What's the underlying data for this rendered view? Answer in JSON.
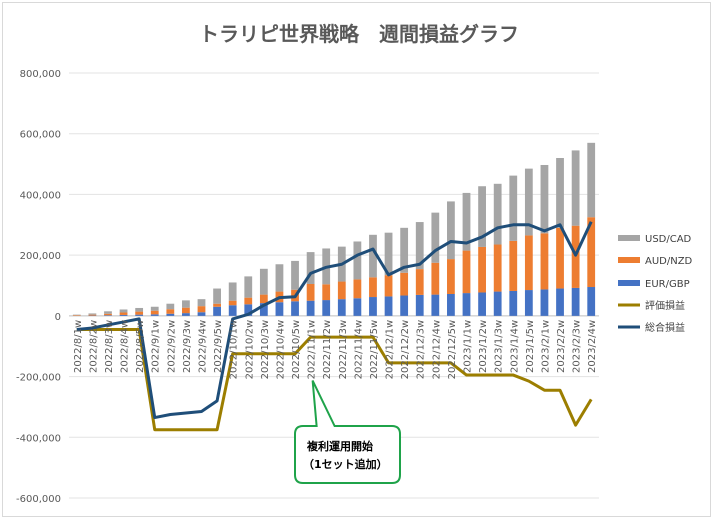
{
  "chart_data": {
    "type": "bar",
    "title": "トラリピ世界戦略　週間損益グラフ",
    "ylim": [
      -600000,
      800000
    ],
    "y_ticks": [
      800000,
      600000,
      400000,
      200000,
      0,
      -200000,
      -400000,
      -600000
    ],
    "y_tick_labels": [
      "800,000",
      "600,000",
      "400,000",
      "200,000",
      "0",
      "-200,000",
      "-400,000",
      "-600,000"
    ],
    "grid": true,
    "legend_position": "right",
    "categories": [
      "2022/8/1w",
      "2022/8/2w",
      "2022/8/3w",
      "2022/8/4w",
      "2022/8/5w",
      "2022/9/1w",
      "2022/9/2w",
      "2022/9/3w",
      "2022/9/4w",
      "2022/9/5w",
      "2022/10/1w",
      "2022/10/2w",
      "2022/10/3w",
      "2022/10/4w",
      "2022/10/5w",
      "2022/11/1w",
      "2022/11/2w",
      "2022/11/3w",
      "2022/11/4w",
      "2022/11/5w",
      "2022/12/1w",
      "2022/12/2w",
      "2022/12/3w",
      "2022/12/4w",
      "2022/12/5w",
      "2023/1/1w",
      "2023/1/2w",
      "2023/1/3w",
      "2023/1/4w",
      "2023/1/5w",
      "2023/2/1w",
      "2023/2/2w",
      "2023/2/3w",
      "2023/2/4w"
    ],
    "x_tick_labels": [
      "2022/8/1w",
      "2022/8/2w",
      "2022/8/3w",
      "2022/8/4w",
      "2022/8/5w",
      "2022/9/1w",
      "2022/9/2w",
      "2022/9/3w",
      "2022/9/4w",
      "2022/9/5w",
      "2022/10/1w",
      "2022/10/2w",
      "2022/10/3w",
      "2022/10/4w",
      "2022/10/5w",
      "2022/11/1w",
      "2022/11/2w",
      "2022/11/3w",
      "2022/11/4w",
      "2022/11/5w",
      "2022/12/1w",
      "2022/12/2w",
      "2022/12/3w",
      "2022/12/4w",
      "2022/12/5w",
      "2023/1/1w",
      "2023/1/2w",
      "2023/1/3w",
      "2023/1/4w",
      "2023/1/5w",
      "2023/2/1w",
      "2023/2/2w",
      "2023/2/3w",
      "2023/2/4w"
    ],
    "stacked_series": [
      {
        "name": "EUR/GBP",
        "color": "#4472c4",
        "values": [
          0,
          1000,
          2000,
          3000,
          4000,
          5000,
          7000,
          9000,
          12000,
          30000,
          35000,
          38000,
          42000,
          45000,
          48000,
          50000,
          52000,
          55000,
          58000,
          62000,
          64000,
          67000,
          69000,
          70000,
          72000,
          75000,
          77000,
          80000,
          82000,
          85000,
          87000,
          90000,
          92000,
          95000
        ]
      },
      {
        "name": "AUD/NZD",
        "color": "#ed7d31",
        "values": [
          2000,
          3000,
          5000,
          8000,
          10000,
          12000,
          15000,
          18000,
          20000,
          10000,
          15000,
          22000,
          28000,
          35000,
          38000,
          55000,
          52000,
          58000,
          62000,
          65000,
          70000,
          75000,
          85000,
          105000,
          115000,
          140000,
          150000,
          155000,
          165000,
          180000,
          185000,
          200000,
          205000,
          230000
        ]
      },
      {
        "name": "USD/CAD",
        "color": "#a5a5a5",
        "values": [
          2000,
          4000,
          8000,
          10000,
          12000,
          13000,
          18000,
          24000,
          23000,
          50000,
          60000,
          70000,
          85000,
          90000,
          95000,
          105000,
          118000,
          115000,
          125000,
          140000,
          140000,
          148000,
          155000,
          165000,
          190000,
          190000,
          200000,
          200000,
          215000,
          220000,
          225000,
          230000,
          248000,
          245000
        ]
      }
    ],
    "line_series": [
      {
        "name": "評価損益",
        "color": "#9c7e00",
        "values": [
          -45000,
          -45000,
          -45000,
          -45000,
          -45000,
          -375000,
          -375000,
          -375000,
          -375000,
          -375000,
          -125000,
          -125000,
          -125000,
          -125000,
          -125000,
          -70000,
          -70000,
          -70000,
          -70000,
          -70000,
          -155000,
          -155000,
          -155000,
          -155000,
          -155000,
          -195000,
          -195000,
          -195000,
          -195000,
          -215000,
          -245000,
          -245000,
          -360000,
          -275000
        ]
      },
      {
        "name": "総合損益",
        "color": "#1f4e79",
        "values": [
          -45000,
          -40000,
          -30000,
          -20000,
          -10000,
          -335000,
          -325000,
          -320000,
          -315000,
          -280000,
          -10000,
          5000,
          35000,
          60000,
          63000,
          140000,
          160000,
          170000,
          200000,
          220000,
          135000,
          160000,
          170000,
          215000,
          245000,
          240000,
          260000,
          290000,
          300000,
          300000,
          280000,
          300000,
          200000,
          310000
        ]
      }
    ],
    "legend": [
      "USD/CAD",
      "AUD/NZD",
      "EUR/GBP",
      "評価損益",
      "総合損益"
    ],
    "annotation": {
      "line1": "複利運用開始",
      "line2": "（1セット追加）",
      "category": "2022/11/1w",
      "border_color": "#1fa34a"
    }
  }
}
